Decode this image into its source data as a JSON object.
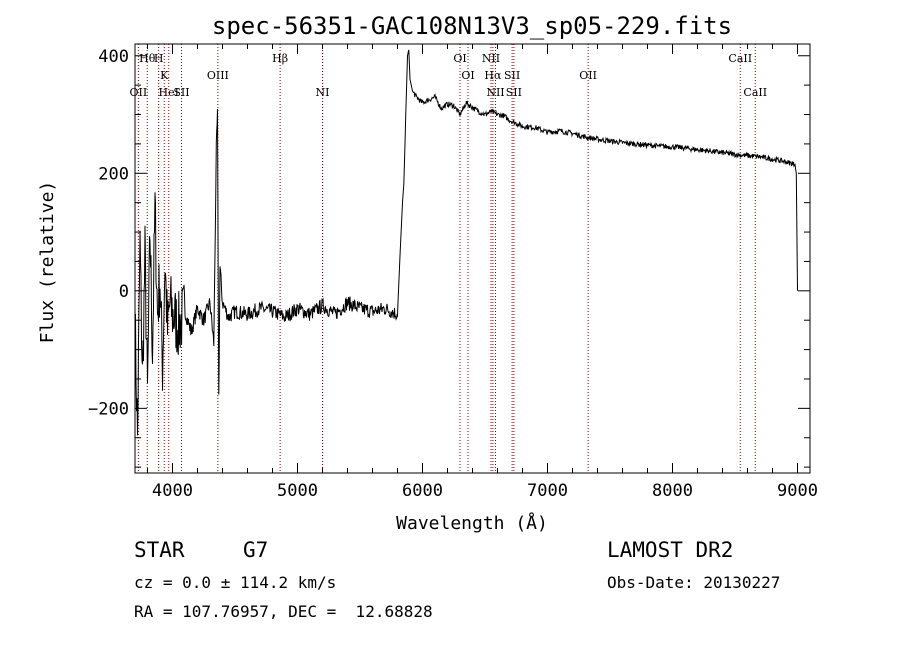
{
  "chart_data": {
    "type": "line",
    "title": "spec-56351-GAC108N13V3_sp05-229.fits",
    "xlabel": "Wavelength (Å)",
    "ylabel": "Flux (relative)",
    "xlim": [
      3700,
      9100
    ],
    "ylim": [
      -310,
      420
    ],
    "xticks": [
      4000,
      5000,
      6000,
      7000,
      8000,
      9000
    ],
    "yticks": [
      -200,
      0,
      200,
      400
    ],
    "grid": false,
    "line_color": "#000000",
    "marker_color": "#8b0000",
    "series": [
      {
        "x": [
          3700,
          3720,
          3740,
          3760,
          3780,
          3800,
          3820,
          3840,
          3860,
          3880,
          3900,
          3920,
          3940,
          3960,
          3980,
          4000,
          4050,
          4100,
          4150,
          4200,
          4250,
          4300,
          4330,
          4350,
          4360,
          4370,
          4380,
          4400,
          4450,
          4500,
          4600,
          4700,
          4800,
          4900,
          5000,
          5100,
          5200,
          5300,
          5400,
          5500,
          5600,
          5700,
          5800,
          5820,
          5840,
          5850,
          5860,
          5870,
          5880,
          5890,
          5900,
          5920,
          5950,
          6000,
          6050,
          6100,
          6150,
          6200,
          6250,
          6300,
          6350,
          6400,
          6450,
          6500,
          6550,
          6600,
          6650,
          6700,
          6750,
          6800,
          6900,
          7000,
          7100,
          7200,
          7300,
          7400,
          7500,
          7600,
          7700,
          7800,
          7900,
          8000,
          8100,
          8200,
          8300,
          8400,
          8500,
          8600,
          8700,
          8800,
          8900,
          8980,
          8990,
          9000
        ],
        "y": [
          -50,
          -250,
          80,
          -150,
          60,
          -180,
          100,
          -100,
          140,
          -40,
          20,
          -130,
          50,
          -70,
          -20,
          -40,
          -60,
          -35,
          -70,
          -30,
          -50,
          -20,
          -90,
          240,
          300,
          -180,
          40,
          -20,
          -45,
          -35,
          -40,
          -30,
          -35,
          -45,
          -30,
          -40,
          -25,
          -40,
          -20,
          -30,
          -35,
          -30,
          -40,
          60,
          150,
          180,
          250,
          330,
          400,
          410,
          360,
          340,
          330,
          320,
          325,
          330,
          310,
          318,
          315,
          300,
          320,
          312,
          305,
          300,
          305,
          300,
          298,
          290,
          285,
          280,
          278,
          270,
          272,
          268,
          262,
          258,
          255,
          252,
          250,
          248,
          246,
          245,
          243,
          240,
          238,
          235,
          232,
          230,
          228,
          224,
          220,
          215,
          200,
          0
        ]
      }
    ],
    "line_markers": [
      {
        "label": "Hθ",
        "wl": 3798,
        "row": 1
      },
      {
        "label": "OII",
        "wl": 3727,
        "row": 3
      },
      {
        "label": "H",
        "wl": 3889,
        "row": 1
      },
      {
        "label": "K",
        "wl": 3934,
        "row": 2
      },
      {
        "label": "HeI",
        "wl": 3970,
        "row": 3
      },
      {
        "label": "SII",
        "wl": 4072,
        "row": 3
      },
      {
        "label": "OIII",
        "wl": 4363,
        "row": 2
      },
      {
        "label": "Hβ",
        "wl": 4861,
        "row": 1
      },
      {
        "label": "NI",
        "wl": 5200,
        "row": 3
      },
      {
        "label": "OI",
        "wl": 6300,
        "row": 1
      },
      {
        "label": "OI",
        "wl": 6364,
        "row": 2
      },
      {
        "label": "NII",
        "wl": 6548,
        "row": 1
      },
      {
        "label": "Hα",
        "wl": 6563,
        "row": 2
      },
      {
        "label": "SII",
        "wl": 6717,
        "row": 2
      },
      {
        "label": "NII",
        "wl": 6584,
        "row": 3
      },
      {
        "label": "SII",
        "wl": 6731,
        "row": 3
      },
      {
        "label": "OII",
        "wl": 7325,
        "row": 2
      },
      {
        "label": "CaII",
        "wl": 8542,
        "row": 1
      },
      {
        "label": "CaII",
        "wl": 8662,
        "row": 3
      }
    ]
  },
  "info": {
    "object_class": "STAR",
    "subclass": "G7",
    "cz_line": "cz = 0.0 ± 114.2 km/s",
    "radec_line": "RA = 107.76957, DEC =  12.68828",
    "survey": "LAMOST DR2",
    "obs_date": "Obs-Date: 20130227"
  }
}
